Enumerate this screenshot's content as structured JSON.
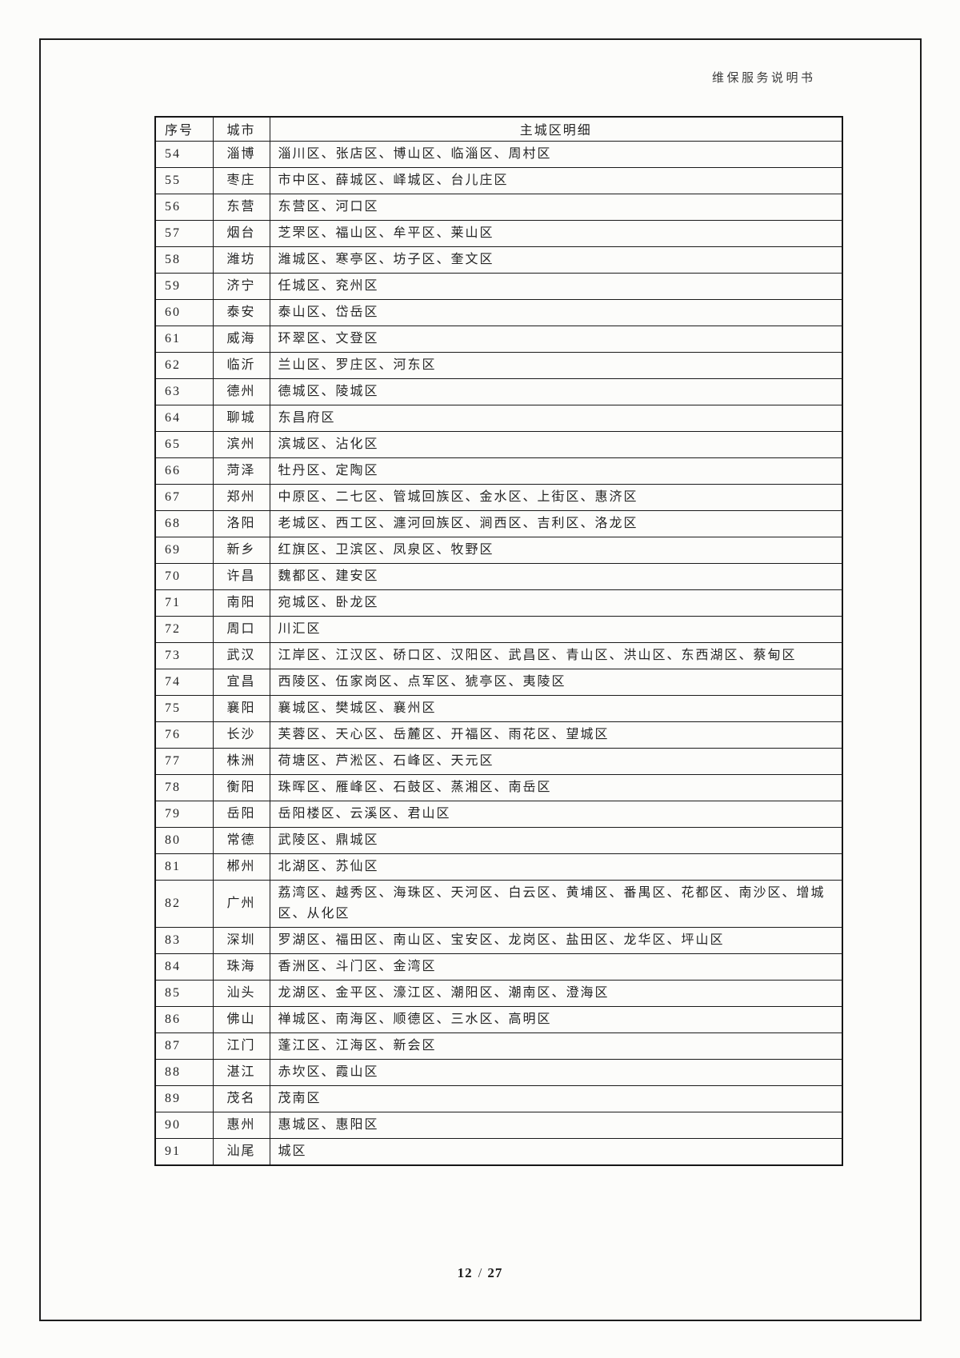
{
  "doc": {
    "header_title": "维保服务说明书",
    "footer": {
      "current_page": "12",
      "separator": "/",
      "total_pages": "27"
    }
  },
  "colors": {
    "paper": "#fcfcfa",
    "ink": "#242424",
    "border": "#1a1a1a"
  },
  "table": {
    "columns": [
      "序号",
      "城市",
      "主城区明细"
    ],
    "rows": [
      {
        "no": "54",
        "city": "淄博",
        "districts": "淄川区、张店区、博山区、临淄区、周村区"
      },
      {
        "no": "55",
        "city": "枣庄",
        "districts": "市中区、薛城区、峄城区、台儿庄区"
      },
      {
        "no": "56",
        "city": "东营",
        "districts": "东营区、河口区"
      },
      {
        "no": "57",
        "city": "烟台",
        "districts": "芝罘区、福山区、牟平区、莱山区"
      },
      {
        "no": "58",
        "city": "潍坊",
        "districts": "潍城区、寒亭区、坊子区、奎文区"
      },
      {
        "no": "59",
        "city": "济宁",
        "districts": "任城区、兖州区"
      },
      {
        "no": "60",
        "city": "泰安",
        "districts": "泰山区、岱岳区"
      },
      {
        "no": "61",
        "city": "威海",
        "districts": "环翠区、文登区"
      },
      {
        "no": "62",
        "city": "临沂",
        "districts": "兰山区、罗庄区、河东区"
      },
      {
        "no": "63",
        "city": "德州",
        "districts": "德城区、陵城区"
      },
      {
        "no": "64",
        "city": "聊城",
        "districts": "东昌府区"
      },
      {
        "no": "65",
        "city": "滨州",
        "districts": "滨城区、沾化区"
      },
      {
        "no": "66",
        "city": "菏泽",
        "districts": "牡丹区、定陶区"
      },
      {
        "no": "67",
        "city": "郑州",
        "districts": "中原区、二七区、管城回族区、金水区、上街区、惠济区"
      },
      {
        "no": "68",
        "city": "洛阳",
        "districts": "老城区、西工区、瀍河回族区、涧西区、吉利区、洛龙区"
      },
      {
        "no": "69",
        "city": "新乡",
        "districts": "红旗区、卫滨区、凤泉区、牧野区"
      },
      {
        "no": "70",
        "city": "许昌",
        "districts": "魏都区、建安区"
      },
      {
        "no": "71",
        "city": "南阳",
        "districts": "宛城区、卧龙区"
      },
      {
        "no": "72",
        "city": "周口",
        "districts": "川汇区"
      },
      {
        "no": "73",
        "city": "武汉",
        "districts": "江岸区、江汉区、硚口区、汉阳区、武昌区、青山区、洪山区、东西湖区、蔡甸区"
      },
      {
        "no": "74",
        "city": "宜昌",
        "districts": "西陵区、伍家岗区、点军区、猇亭区、夷陵区"
      },
      {
        "no": "75",
        "city": "襄阳",
        "districts": "襄城区、樊城区、襄州区"
      },
      {
        "no": "76",
        "city": "长沙",
        "districts": "芙蓉区、天心区、岳麓区、开福区、雨花区、望城区"
      },
      {
        "no": "77",
        "city": "株洲",
        "districts": "荷塘区、芦淞区、石峰区、天元区"
      },
      {
        "no": "78",
        "city": "衡阳",
        "districts": "珠晖区、雁峰区、石鼓区、蒸湘区、南岳区"
      },
      {
        "no": "79",
        "city": "岳阳",
        "districts": "岳阳楼区、云溪区、君山区"
      },
      {
        "no": "80",
        "city": "常德",
        "districts": "武陵区、鼎城区"
      },
      {
        "no": "81",
        "city": "郴州",
        "districts": "北湖区、苏仙区"
      },
      {
        "no": "82",
        "city": "广州",
        "districts": "荔湾区、越秀区、海珠区、天河区、白云区、黄埔区、番禺区、花都区、南沙区、增城区、从化区"
      },
      {
        "no": "83",
        "city": "深圳",
        "districts": "罗湖区、福田区、南山区、宝安区、龙岗区、盐田区、龙华区、坪山区"
      },
      {
        "no": "84",
        "city": "珠海",
        "districts": "香洲区、斗门区、金湾区"
      },
      {
        "no": "85",
        "city": "汕头",
        "districts": "龙湖区、金平区、濠江区、潮阳区、潮南区、澄海区"
      },
      {
        "no": "86",
        "city": "佛山",
        "districts": "禅城区、南海区、顺德区、三水区、高明区"
      },
      {
        "no": "87",
        "city": "江门",
        "districts": "蓬江区、江海区、新会区"
      },
      {
        "no": "88",
        "city": "湛江",
        "districts": "赤坎区、霞山区"
      },
      {
        "no": "89",
        "city": "茂名",
        "districts": "茂南区"
      },
      {
        "no": "90",
        "city": "惠州",
        "districts": "惠城区、惠阳区"
      },
      {
        "no": "91",
        "city": "汕尾",
        "districts": "城区"
      }
    ]
  }
}
